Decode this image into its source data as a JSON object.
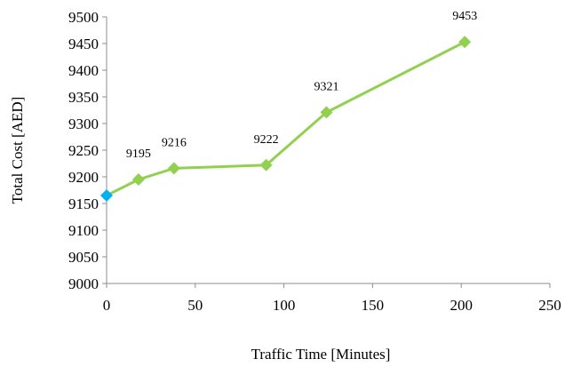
{
  "chart_data": {
    "type": "scatter",
    "title": "",
    "xlabel": "Traffic Time [Minutes]",
    "ylabel": "Total Cost [AED]",
    "xlim": [
      0,
      250
    ],
    "ylim": [
      9000,
      9500
    ],
    "xticks": [
      0,
      50,
      100,
      150,
      200,
      250
    ],
    "yticks": [
      9000,
      9050,
      9100,
      9150,
      9200,
      9250,
      9300,
      9350,
      9400,
      9450,
      9500
    ],
    "grid": false,
    "legend": "none",
    "series": [
      {
        "points": [
          {
            "x": 0,
            "y": 9165,
            "label": ""
          },
          {
            "x": 18,
            "y": 9195,
            "label": "9195"
          },
          {
            "x": 38,
            "y": 9216,
            "label": "9216"
          },
          {
            "x": 90,
            "y": 9222,
            "label": "9222"
          },
          {
            "x": 124,
            "y": 9321,
            "label": "9321"
          },
          {
            "x": 202,
            "y": 9453,
            "label": "9453"
          }
        ],
        "line_color": "#92D050",
        "marker_color": "#92D050",
        "first_marker_color": "#00B0F0",
        "marker": "diamond"
      }
    ]
  }
}
